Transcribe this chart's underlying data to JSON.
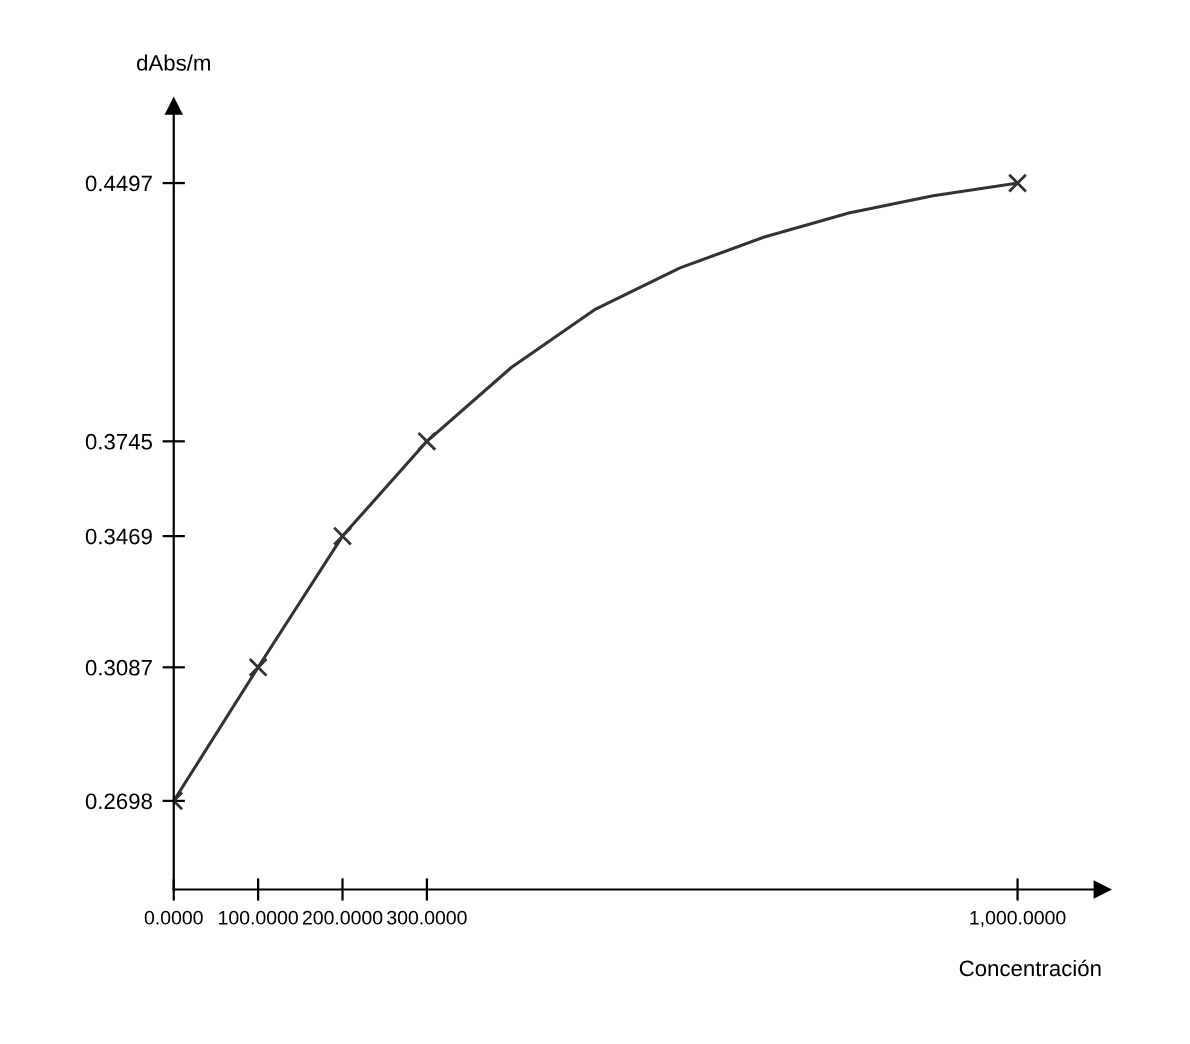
{
  "chart_data": {
    "type": "line",
    "xlabel": "Concentración",
    "ylabel": "dAbs/m",
    "x": [
      0,
      100,
      200,
      300,
      1000
    ],
    "series": [
      {
        "color": "#333333",
        "marker": "none",
        "x": [
          0,
          100,
          200,
          300,
          400,
          500,
          600,
          700,
          800,
          900,
          1000
        ],
        "values": [
          0.2698,
          0.3087,
          0.3469,
          0.3745,
          0.396,
          0.413,
          0.425,
          0.434,
          0.441,
          0.446,
          0.4497
        ]
      },
      {
        "type": "scatter",
        "marker": "cross",
        "color": "#333333",
        "values": [
          0.2698,
          0.3087,
          0.3469,
          0.3745,
          0.4497
        ]
      }
    ],
    "line_style": "solid",
    "grid": false,
    "xlim": [
      0,
      1100
    ],
    "ylim": [
      0.244,
      0.472
    ],
    "xticks": [
      {
        "value": 0,
        "label": "0.0000"
      },
      {
        "value": 100,
        "label": "100.0000"
      },
      {
        "value": 200,
        "label": "200.0000"
      },
      {
        "value": 300,
        "label": "300.0000"
      },
      {
        "value": 1000,
        "label": "1,000.0000"
      }
    ],
    "yticks": [
      0.2698,
      0.3087,
      0.3469,
      0.3745,
      0.4497
    ]
  }
}
